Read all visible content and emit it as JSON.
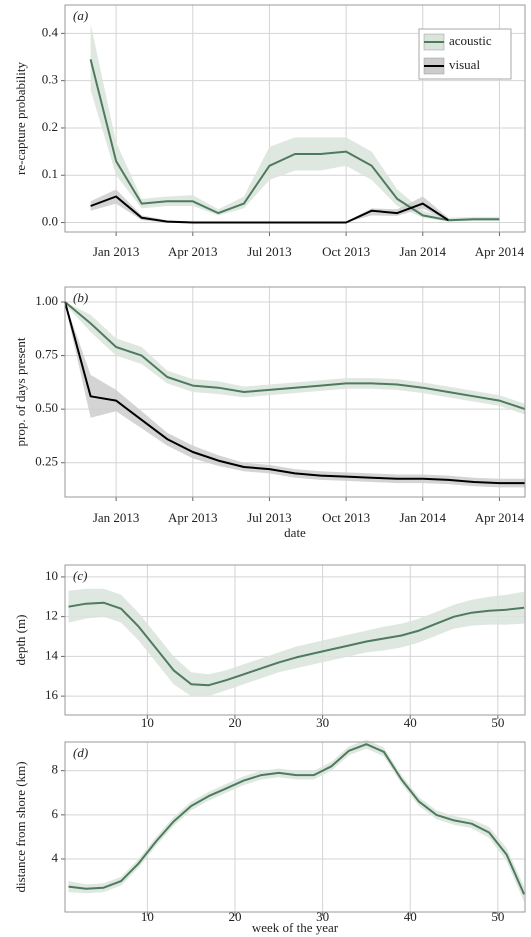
{
  "chart_data": [
    {
      "type": "line",
      "tag": "(a)",
      "ylabel": "re-capture probability",
      "x": [
        "2012-12",
        "2013-01",
        "2013-02",
        "2013-03",
        "2013-04",
        "2013-05",
        "2013-06",
        "2013-07",
        "2013-08",
        "2013-09",
        "2013-10",
        "2013-11",
        "2013-12",
        "2014-01",
        "2014-02",
        "2014-03",
        "2014-04"
      ],
      "series": [
        {
          "name": "acoustic",
          "color": "#4e7a5e",
          "band_color": "#d9e4da",
          "values": [
            0.345,
            0.13,
            0.04,
            0.045,
            0.045,
            0.02,
            0.04,
            0.12,
            0.145,
            0.145,
            0.15,
            0.12,
            0.05,
            0.015,
            0.005,
            0.007,
            0.007
          ],
          "lower": [
            0.28,
            0.1,
            0.03,
            0.035,
            0.035,
            0.015,
            0.03,
            0.09,
            0.11,
            0.11,
            0.12,
            0.09,
            0.035,
            0.01,
            0.002,
            0.003,
            0.003
          ],
          "upper": [
            0.42,
            0.17,
            0.05,
            0.055,
            0.058,
            0.028,
            0.055,
            0.16,
            0.18,
            0.18,
            0.18,
            0.15,
            0.07,
            0.025,
            0.01,
            0.012,
            0.012
          ]
        },
        {
          "name": "visual",
          "color": "#000000",
          "band_color": "#cccccc",
          "values": [
            0.035,
            0.055,
            0.01,
            0.002,
            0,
            0,
            0,
            0,
            0,
            0,
            0,
            0.025,
            0.02,
            0.04,
            0.005,
            null,
            null
          ],
          "lower": [
            0.025,
            0.04,
            0.005,
            0,
            0,
            0,
            0,
            0,
            0,
            0,
            0,
            0.015,
            0.014,
            0.03,
            0.002,
            null,
            null
          ],
          "upper": [
            0.045,
            0.07,
            0.015,
            0.005,
            0.002,
            0.002,
            0.002,
            0.002,
            0.002,
            0.002,
            0.002,
            0.03,
            0.028,
            0.055,
            0.01,
            null,
            null
          ]
        }
      ],
      "xlim": [
        "2012-11",
        "2014-05"
      ],
      "ylim": [
        -0.02,
        0.46
      ],
      "xticks": [
        {
          "value": "2013-01",
          "label": "Jan 2013"
        },
        {
          "value": "2013-04",
          "label": "Apr 2013"
        },
        {
          "value": "2013-07",
          "label": "Jul 2013"
        },
        {
          "value": "2013-10",
          "label": "Oct 2013"
        },
        {
          "value": "2014-01",
          "label": "Jan 2014"
        },
        {
          "value": "2014-04",
          "label": "Apr 2014"
        }
      ],
      "yticks": [
        {
          "value": 0,
          "label": "0.0"
        },
        0.1,
        0.2,
        0.3,
        0.4
      ],
      "grid": true,
      "legend": "upper right"
    },
    {
      "type": "line",
      "tag": "(b)",
      "ylabel": "prop. of days present",
      "xlabel": "date",
      "x": [
        "2012-11",
        "2012-12",
        "2013-01",
        "2013-02",
        "2013-03",
        "2013-04",
        "2013-05",
        "2013-06",
        "2013-07",
        "2013-08",
        "2013-09",
        "2013-10",
        "2013-11",
        "2013-12",
        "2014-01",
        "2014-02",
        "2014-03",
        "2014-04",
        "2014-05"
      ],
      "series": [
        {
          "name": "acoustic",
          "color": "#4e7a5e",
          "band_color": "#d9e4da",
          "values": [
            1.0,
            0.9,
            0.79,
            0.75,
            0.65,
            0.61,
            0.6,
            0.58,
            0.59,
            0.6,
            0.61,
            0.62,
            0.62,
            0.615,
            0.6,
            0.58,
            0.56,
            0.54,
            0.5
          ],
          "lower": [
            0.99,
            0.86,
            0.75,
            0.71,
            0.62,
            0.58,
            0.57,
            0.555,
            0.565,
            0.575,
            0.585,
            0.595,
            0.595,
            0.59,
            0.575,
            0.555,
            0.535,
            0.515,
            0.475
          ],
          "upper": [
            1.0,
            0.94,
            0.83,
            0.79,
            0.68,
            0.64,
            0.63,
            0.605,
            0.615,
            0.625,
            0.635,
            0.645,
            0.645,
            0.64,
            0.625,
            0.605,
            0.585,
            0.565,
            0.525
          ]
        },
        {
          "name": "visual",
          "color": "#000000",
          "band_color": "#cccccc",
          "values": [
            1.0,
            0.56,
            0.54,
            0.45,
            0.36,
            0.3,
            0.26,
            0.23,
            0.22,
            0.2,
            0.19,
            0.185,
            0.18,
            0.175,
            0.175,
            0.17,
            0.16,
            0.155,
            0.155
          ],
          "lower": [
            0.99,
            0.46,
            0.49,
            0.41,
            0.33,
            0.27,
            0.235,
            0.21,
            0.2,
            0.18,
            0.17,
            0.165,
            0.16,
            0.155,
            0.155,
            0.15,
            0.14,
            0.135,
            0.135
          ],
          "upper": [
            1.0,
            0.66,
            0.59,
            0.49,
            0.39,
            0.33,
            0.285,
            0.25,
            0.24,
            0.22,
            0.21,
            0.205,
            0.2,
            0.195,
            0.195,
            0.19,
            0.18,
            0.175,
            0.175
          ]
        }
      ],
      "xlim": [
        "2012-11",
        "2014-05"
      ],
      "ylim": [
        0.09,
        1.07
      ],
      "xticks": [
        {
          "value": "2013-01",
          "label": "Jan 2013"
        },
        {
          "value": "2013-04",
          "label": "Apr 2013"
        },
        {
          "value": "2013-07",
          "label": "Jul 2013"
        },
        {
          "value": "2013-10",
          "label": "Oct 2013"
        },
        {
          "value": "2014-01",
          "label": "Jan 2014"
        },
        {
          "value": "2014-04",
          "label": "Apr 2014"
        }
      ],
      "yticks": [
        {
          "value": 1,
          "label": "1.00"
        },
        0.75,
        {
          "value": 0.5,
          "label": "0.50"
        },
        0.25
      ],
      "grid": true
    },
    {
      "type": "line",
      "tag": "(c)",
      "ylabel": "depth (m)",
      "x": [
        1,
        3,
        5,
        7,
        9,
        11,
        13,
        15,
        17,
        19,
        21,
        23,
        25,
        27,
        29,
        31,
        33,
        35,
        37,
        39,
        41,
        43,
        45,
        47,
        49,
        51,
        53
      ],
      "series": [
        {
          "color": "#4e7a5e",
          "band_color": "#d9e4da",
          "values": [
            11.5,
            11.35,
            11.3,
            11.6,
            12.5,
            13.6,
            14.7,
            15.4,
            15.45,
            15.2,
            14.9,
            14.6,
            14.3,
            14.05,
            13.85,
            13.65,
            13.45,
            13.25,
            13.1,
            12.95,
            12.7,
            12.35,
            12.0,
            11.8,
            11.7,
            11.65,
            11.55
          ],
          "lower": [
            10.7,
            10.6,
            10.6,
            10.9,
            11.8,
            12.9,
            14.0,
            14.8,
            14.9,
            14.7,
            14.4,
            14.1,
            13.8,
            13.5,
            13.3,
            13.1,
            12.9,
            12.7,
            12.5,
            12.35,
            12.1,
            11.75,
            11.4,
            11.15,
            11.0,
            10.9,
            10.75
          ],
          "upper": [
            12.3,
            12.1,
            12.0,
            12.3,
            13.2,
            14.3,
            15.4,
            16.0,
            16.0,
            15.7,
            15.4,
            15.1,
            14.8,
            14.6,
            14.4,
            14.2,
            14.0,
            13.8,
            13.7,
            13.55,
            13.3,
            12.95,
            12.6,
            12.45,
            12.4,
            12.4,
            12.35
          ]
        }
      ],
      "xlim": [
        0.6,
        53.1
      ],
      "ylim": [
        9.4,
        16.95
      ],
      "y_inverted": true,
      "xticks": [
        10,
        20,
        30,
        40,
        50
      ],
      "yticks": [
        10,
        12,
        14,
        16
      ],
      "grid": true
    },
    {
      "type": "line",
      "tag": "(d)",
      "ylabel": "distance from shore (km)",
      "xlabel": "week of the year",
      "x": [
        1,
        3,
        5,
        7,
        9,
        11,
        13,
        15,
        17,
        19,
        21,
        23,
        25,
        27,
        29,
        31,
        33,
        35,
        37,
        39,
        41,
        43,
        45,
        47,
        49,
        51,
        53
      ],
      "series": [
        {
          "color": "#4e7a5e",
          "band_color": "#d9e4da",
          "values": [
            2.75,
            2.65,
            2.7,
            3.0,
            3.8,
            4.8,
            5.7,
            6.4,
            6.85,
            7.2,
            7.55,
            7.8,
            7.9,
            7.8,
            7.8,
            8.2,
            8.9,
            9.2,
            8.85,
            7.6,
            6.6,
            6.0,
            5.75,
            5.6,
            5.2,
            4.2,
            2.4
          ],
          "lower": [
            2.5,
            2.45,
            2.5,
            2.8,
            3.6,
            4.6,
            5.5,
            6.2,
            6.65,
            7.0,
            7.35,
            7.6,
            7.7,
            7.6,
            7.6,
            8.0,
            8.7,
            9.0,
            8.65,
            7.4,
            6.4,
            5.8,
            5.55,
            5.4,
            4.95,
            3.9,
            2.05
          ],
          "upper": [
            3.0,
            2.85,
            2.9,
            3.2,
            4.0,
            5.0,
            5.9,
            6.6,
            7.05,
            7.4,
            7.75,
            8.0,
            8.1,
            8.0,
            8.0,
            8.4,
            9.1,
            9.4,
            9.05,
            7.8,
            6.8,
            6.2,
            5.95,
            5.8,
            5.45,
            4.5,
            2.75
          ]
        }
      ],
      "xlim": [
        0.6,
        53.1
      ],
      "ylim": [
        1.6,
        9.3
      ],
      "xticks": [
        10,
        20,
        30,
        40,
        50
      ],
      "yticks": [
        4,
        6,
        8
      ],
      "grid": true
    }
  ]
}
